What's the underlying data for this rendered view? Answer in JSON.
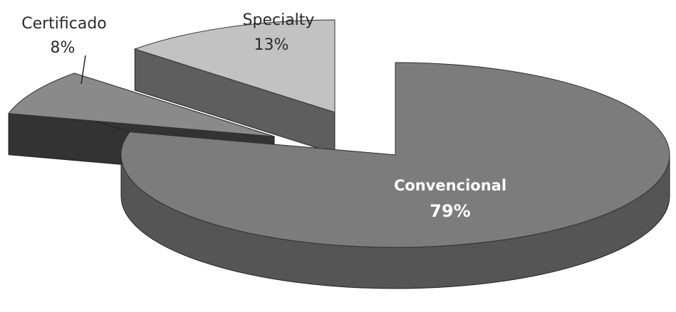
{
  "chart_data": {
    "type": "pie",
    "style": "3d-exploded",
    "title": "",
    "legend": "none",
    "slices": [
      {
        "name": "Convencional",
        "value": 79,
        "label": "79%",
        "color": "#7c7c7c",
        "side_color": "#555555"
      },
      {
        "name": "Certificado",
        "value": 8,
        "label": "8%",
        "color": "#8a8a8a",
        "side_color": "#333333"
      },
      {
        "name": "Specialty",
        "value": 13,
        "label": "13%",
        "color": "#c2c2c2",
        "side_color": "#5e5e5e"
      }
    ]
  }
}
